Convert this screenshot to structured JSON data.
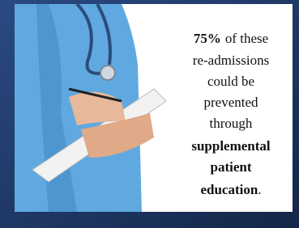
{
  "statement": {
    "stat": "75%",
    "lines": [
      "of these",
      "re-admissions",
      "could be",
      "prevented",
      "through"
    ],
    "emphasis": [
      "supplemental",
      "patient",
      "education"
    ],
    "end": "."
  }
}
